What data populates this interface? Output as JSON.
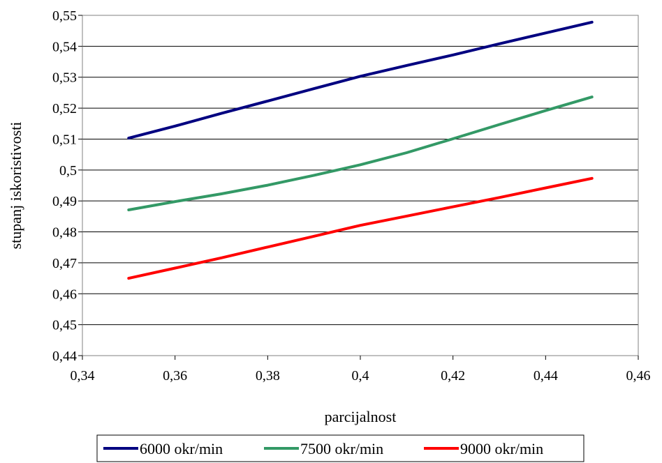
{
  "chart_data": {
    "type": "line",
    "xlabel": "parcijalnost",
    "ylabel": "stupanj iskoristivosti",
    "xlim": [
      0.34,
      0.46
    ],
    "ylim": [
      0.44,
      0.55
    ],
    "x_ticks": [
      "0,34",
      "0,36",
      "0,38",
      "0,4",
      "0,42",
      "0,44",
      "0,46"
    ],
    "y_ticks": [
      "0,55",
      "0,54",
      "0,53",
      "0,52",
      "0,51",
      "0,5",
      "0,49",
      "0,48",
      "0,47",
      "0,46",
      "0,45",
      "0,44"
    ],
    "grid": "horizontal",
    "legend_position": "bottom",
    "series": [
      {
        "name": "6000 okr/min",
        "color": "#000080",
        "x": [
          0.35,
          0.36,
          0.37,
          0.38,
          0.39,
          0.4,
          0.41,
          0.42,
          0.43,
          0.44,
          0.45
        ],
        "y": [
          0.5103,
          0.5142,
          0.5183,
          0.5223,
          0.5263,
          0.5303,
          0.5338,
          0.5372,
          0.5408,
          0.5443,
          0.5478
        ]
      },
      {
        "name": "7500 okr/min",
        "color": "#339966",
        "x": [
          0.35,
          0.36,
          0.37,
          0.38,
          0.39,
          0.4,
          0.41,
          0.42,
          0.43,
          0.44,
          0.45
        ],
        "y": [
          0.4871,
          0.4898,
          0.4923,
          0.4951,
          0.4983,
          0.5017,
          0.5056,
          0.5101,
          0.5147,
          0.5192,
          0.5236
        ]
      },
      {
        "name": "9000 okr/min",
        "color": "#ff0000",
        "x": [
          0.35,
          0.36,
          0.37,
          0.38,
          0.39,
          0.4,
          0.41,
          0.42,
          0.43,
          0.44,
          0.45
        ],
        "y": [
          0.465,
          0.4683,
          0.4716,
          0.4751,
          0.4786,
          0.4821,
          0.4851,
          0.4881,
          0.4911,
          0.4942,
          0.4973
        ]
      }
    ]
  }
}
